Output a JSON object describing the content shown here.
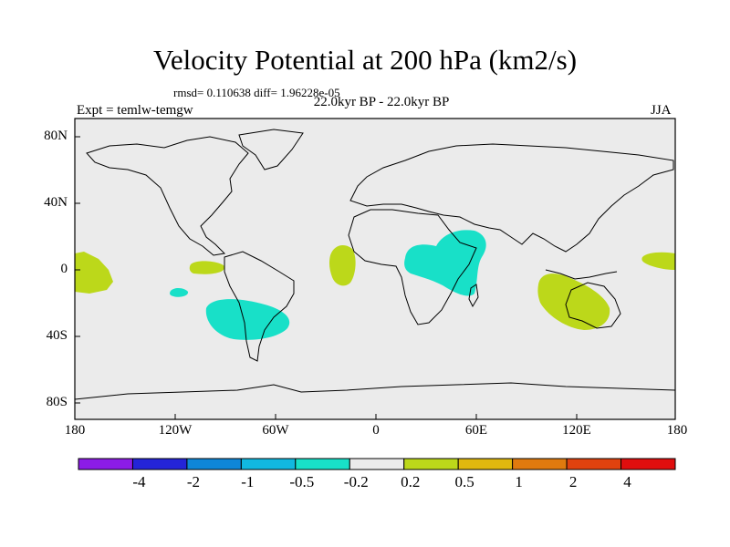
{
  "title": "Velocity Potential at 200 hPa (km2/s)",
  "stats": "rmsd= 0.110638 diff= 1.96228e-05",
  "period": "22.0kyr BP - 22.0kyr BP",
  "expt": "Expt = temlw-temgw",
  "season": "JJA",
  "lat_labels": [
    "80N",
    "40N",
    "0",
    "40S",
    "80S"
  ],
  "lon_labels": [
    "180",
    "120W",
    "60W",
    "0",
    "60E",
    "120E",
    "180"
  ],
  "colorbar": {
    "labels": [
      "-4",
      "-2",
      "-1",
      "-0.5",
      "-0.2",
      "0.2",
      "0.5",
      "1",
      "2",
      "4"
    ],
    "colors": [
      "#8c1ce6",
      "#2424d8",
      "#0e86d8",
      "#11b8e0",
      "#18e0c8",
      "#ebebeb",
      "#bcd81a",
      "#e0b80e",
      "#e07a0e",
      "#e0420e",
      "#e00e0e"
    ]
  },
  "map_colors": {
    "ocean_background": "#ebebeb",
    "positive_0.2_0.5": "#bcd81a",
    "negative_-0.5_-0.2": "#18e0c8"
  },
  "map_regions": [
    {
      "name": "central-pacific-west-positive",
      "value_class": "0.2 to 0.5"
    },
    {
      "name": "east-pacific-positive",
      "value_class": "0.2 to 0.5"
    },
    {
      "name": "east-pacific-negative",
      "value_class": "-0.5 to -0.2"
    },
    {
      "name": "south-america-negative",
      "value_class": "-0.5 to -0.2"
    },
    {
      "name": "tropical-atlantic-positive",
      "value_class": "0.2 to 0.5"
    },
    {
      "name": "africa-arabia-negative",
      "value_class": "-0.5 to -0.2"
    },
    {
      "name": "indian-ocean-australia-positive",
      "value_class": "0.2 to 0.5"
    },
    {
      "name": "west-pacific-positive",
      "value_class": "0.2 to 0.5"
    }
  ]
}
